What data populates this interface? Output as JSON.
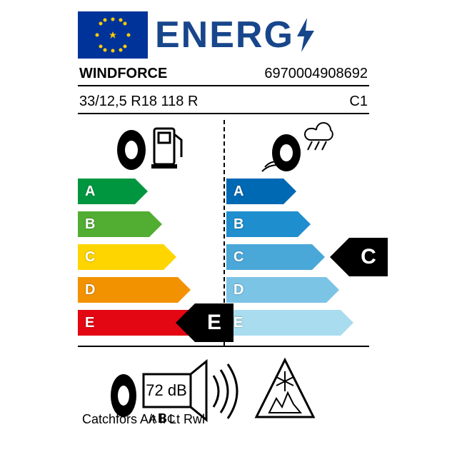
{
  "header": {
    "flag_bg": "#003399",
    "star_color": "#ffcc00",
    "energy_text": "ENERG",
    "energy_color": "#18468b"
  },
  "info": {
    "brand": "WINDFORCE",
    "ean": "6970004908692",
    "size": "33/12,5 R18 118 R",
    "class": "C1"
  },
  "fuel": {
    "type": "efficiency-arrows",
    "grades": [
      "A",
      "B",
      "C",
      "D",
      "E"
    ],
    "colors": [
      "#009640",
      "#52ae32",
      "#ffd500",
      "#f39200",
      "#e30613"
    ],
    "base_width": 70,
    "step_width": 20,
    "value": "E",
    "value_index": 4
  },
  "wet": {
    "type": "efficiency-arrows",
    "grades": [
      "A",
      "B",
      "C",
      "D",
      "E"
    ],
    "colors": [
      "#0069b4",
      "#1e8ecf",
      "#4aa8d8",
      "#7cc4e6",
      "#a9dcef"
    ],
    "base_width": 70,
    "step_width": 20,
    "value": "C",
    "value_index": 2
  },
  "arrow_style": {
    "height": 36,
    "gap": 10,
    "label_color": "#ffffff",
    "label_fontsize": 20,
    "badge_bg": "#000000",
    "badge_color": "#ffffff"
  },
  "noise": {
    "db_value": "72 dB",
    "abc_html": "A<b style='color:#000'>B</b>C",
    "waves": 3
  },
  "snow": {
    "present": true
  },
  "product_name": "Catchfors A/t Ii Lt Rwl"
}
